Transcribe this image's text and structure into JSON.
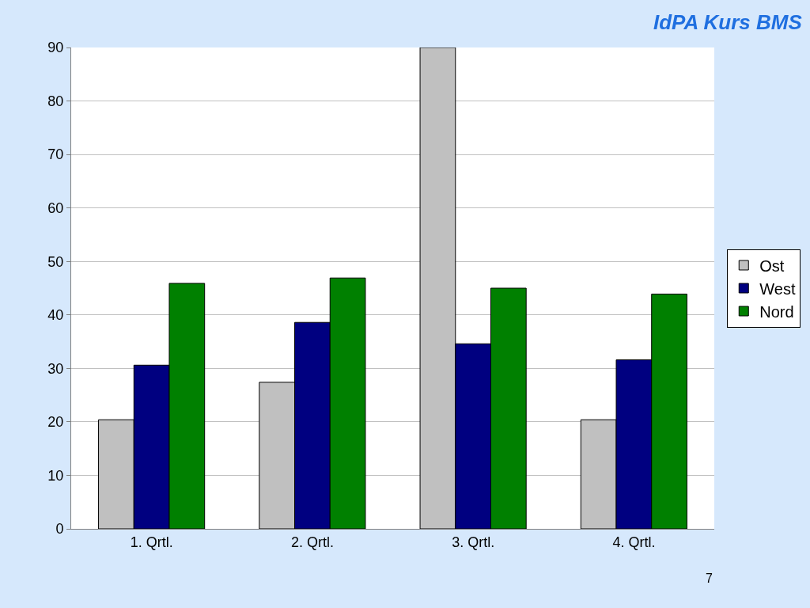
{
  "chart_data": {
    "type": "bar",
    "title": "IdPA Kurs BMS",
    "categories": [
      "1. Qrtl.",
      "2. Qrtl.",
      "3. Qrtl.",
      "4. Qrtl."
    ],
    "series": [
      {
        "name": "Ost",
        "color": "#c0c0c0",
        "values": [
          20.4,
          27.4,
          90,
          20.4
        ]
      },
      {
        "name": "West",
        "color": "#000080",
        "values": [
          30.6,
          38.6,
          34.6,
          31.6
        ]
      },
      {
        "name": "Nord",
        "color": "#008000",
        "values": [
          45.9,
          46.9,
          45,
          43.9
        ]
      }
    ],
    "ylim": [
      0,
      90
    ],
    "yticks": [
      0,
      10,
      20,
      30,
      40,
      50,
      60,
      70,
      80,
      90
    ],
    "grid": "y",
    "legend": "right",
    "annotations": [
      "7"
    ]
  }
}
